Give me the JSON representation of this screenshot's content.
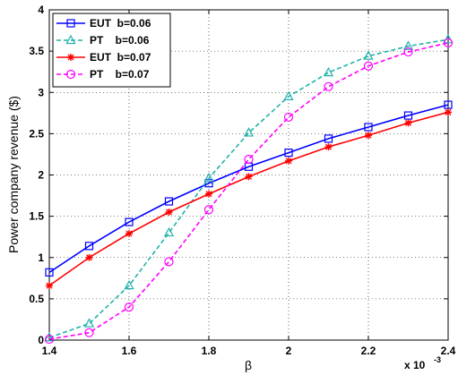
{
  "chart_data": {
    "type": "line",
    "xlabel": "β",
    "ylabel": "Power company revenue ($)",
    "x_multiplier": "x 10",
    "x_multiplier_exp": "-3",
    "xlim": [
      1.4,
      2.4
    ],
    "ylim": [
      0,
      4
    ],
    "grid": true,
    "legend_position": "top-left",
    "x_ticks": [
      "1.4",
      "1.6",
      "1.8",
      "2",
      "2.2",
      "2.4"
    ],
    "y_ticks": [
      "0",
      "0.5",
      "1",
      "1.5",
      "2",
      "2.5",
      "3",
      "3.5",
      "4"
    ],
    "x": [
      1.4,
      1.5,
      1.6,
      1.7,
      1.8,
      1.9,
      2.0,
      2.1,
      2.2,
      2.3,
      2.4
    ],
    "series": [
      {
        "name": "EUT  b=0.06",
        "color": "#0000ff",
        "dash": "solid",
        "marker": "square",
        "values": [
          0.82,
          1.14,
          1.43,
          1.68,
          1.9,
          2.1,
          2.27,
          2.44,
          2.58,
          2.72,
          2.85
        ]
      },
      {
        "name": "PT    b=0.06",
        "color": "#20b2aa",
        "dash": "dashed",
        "marker": "triangle",
        "values": [
          0.03,
          0.2,
          0.66,
          1.3,
          1.96,
          2.51,
          2.95,
          3.24,
          3.44,
          3.56,
          3.64
        ]
      },
      {
        "name": "EUT  b=0.07",
        "color": "#ff0000",
        "dash": "solid",
        "marker": "star",
        "values": [
          0.66,
          1.0,
          1.29,
          1.55,
          1.77,
          1.98,
          2.17,
          2.34,
          2.48,
          2.63,
          2.76
        ]
      },
      {
        "name": "PT    b=0.07",
        "color": "#ff00ff",
        "dash": "dashed",
        "marker": "circle",
        "values": [
          0.01,
          0.09,
          0.4,
          0.95,
          1.58,
          2.19,
          2.7,
          3.07,
          3.32,
          3.49,
          3.6
        ]
      }
    ]
  }
}
